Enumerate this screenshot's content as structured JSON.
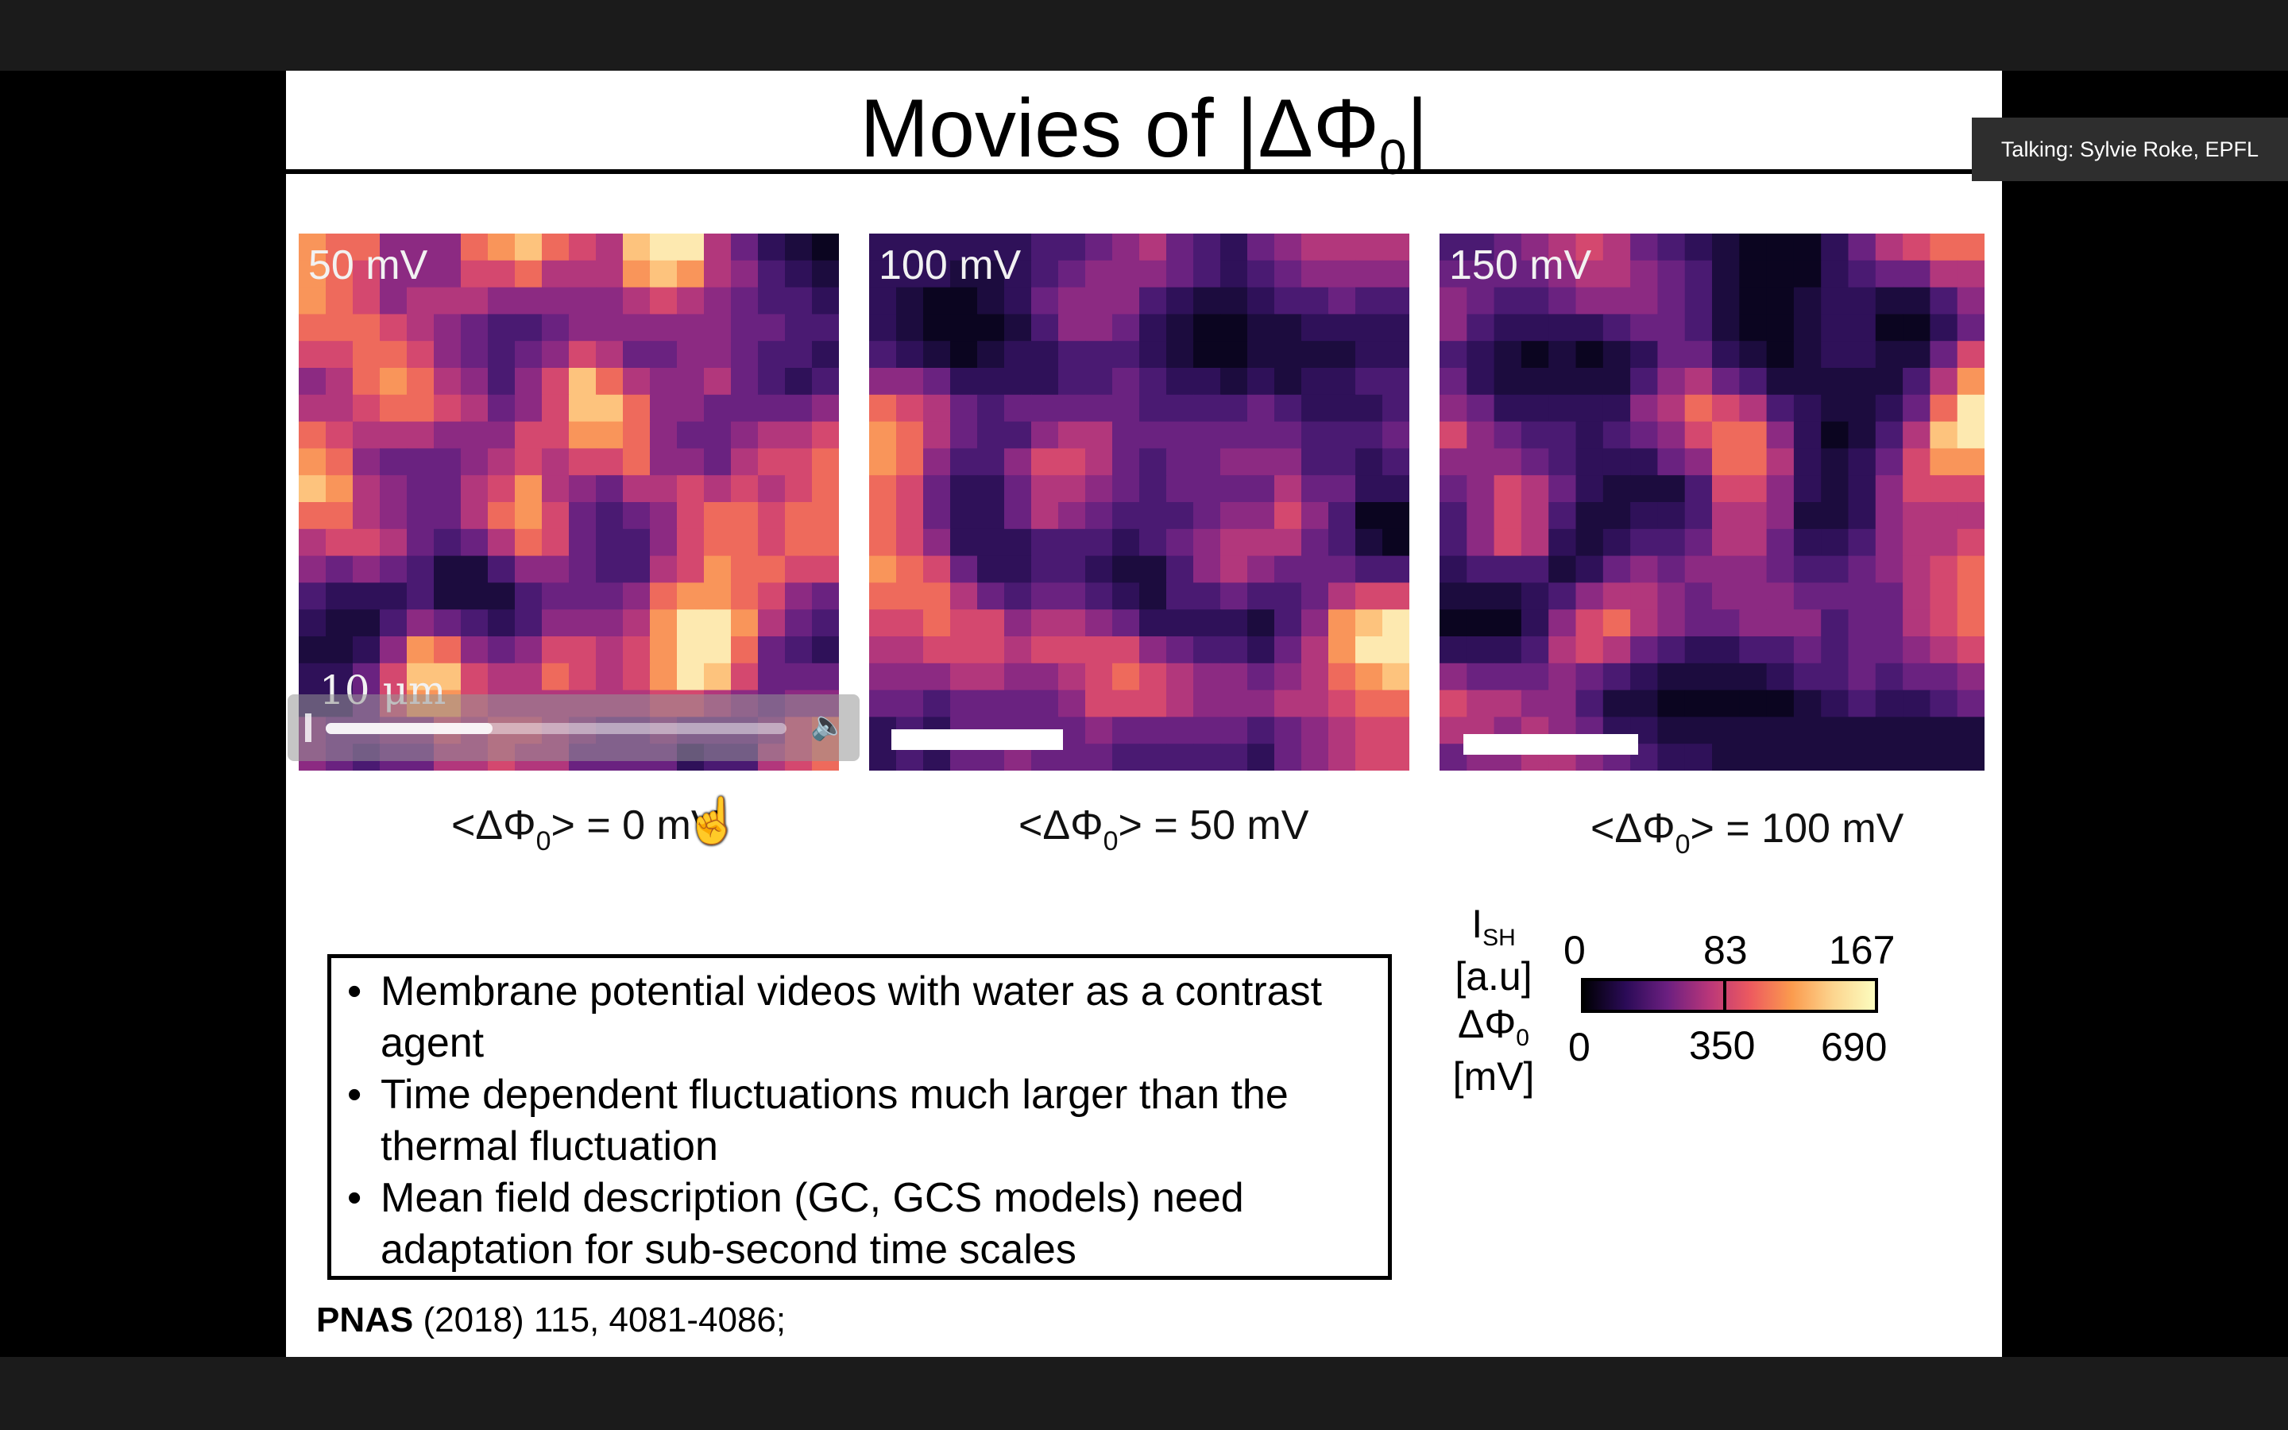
{
  "slide": {
    "title_prefix": "Movies of |ΔΦ",
    "title_sub": "0",
    "title_suffix": "|",
    "panels": [
      {
        "label": "50 mV",
        "scale_label": "10 μm",
        "caption_prefix": "<ΔΦ",
        "caption_sub": "0",
        "caption_suffix": "> = 0 mV"
      },
      {
        "label": "100 mV",
        "caption_prefix": "<ΔΦ",
        "caption_sub": "0",
        "caption_suffix": "> = 50 mV"
      },
      {
        "label": "150 mV",
        "caption_prefix": "<ΔΦ",
        "caption_sub": "0",
        "caption_suffix": "> = 100 mV"
      }
    ],
    "bullets": [
      "Membrane potential videos with water as a contrast agent",
      "Time dependent fluctuations much larger than the thermal fluctuation",
      "Mean field description (GC, GCS models) need adaptation for sub-second time scales"
    ],
    "citation_journal": "PNAS",
    "citation_rest": " (2018) 115, 4081-4086;",
    "colorbar": {
      "ish_label_main": "I",
      "ish_label_sub": "SH",
      "ish_unit": "[a.u]",
      "dphi_label_main": "ΔΦ",
      "dphi_label_sub": "0",
      "dphi_unit": "[mV]",
      "top_ticks": [
        "0",
        "83",
        "167"
      ],
      "bottom_ticks": [
        "0",
        "350",
        "690"
      ]
    }
  },
  "overlay": {
    "talking": "Talking: Sylvie Roke, EPFL",
    "video_controls": {
      "volume_icon": "speaker-icon"
    },
    "cursor_icon": "hand-pointer-icon"
  }
}
